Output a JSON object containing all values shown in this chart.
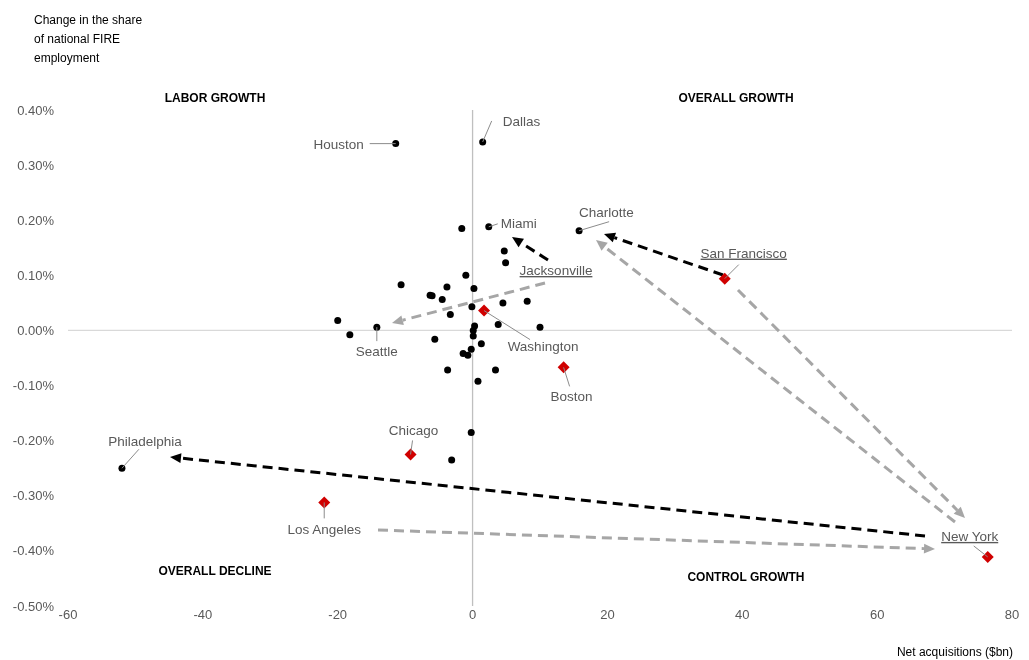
{
  "chart_data": {
    "type": "scatter",
    "xlabel": "Net acquisitions ($bn)",
    "ylabel": "Change in the share of national FIRE employment",
    "xlim": [
      -60,
      80
    ],
    "xticks": [
      -60,
      -40,
      -20,
      0,
      20,
      40,
      60,
      80
    ],
    "ylim": [
      -0.5,
      0.4
    ],
    "yticks": [
      {
        "value": -0.5,
        "label": "-0.50%"
      },
      {
        "value": -0.4,
        "label": "-0.40%"
      },
      {
        "value": -0.3,
        "label": "-0.30%"
      },
      {
        "value": -0.2,
        "label": "-0.20%"
      },
      {
        "value": -0.1,
        "label": "-0.10%"
      },
      {
        "value": 0,
        "label": "0.00%"
      },
      {
        "value": 0.1,
        "label": "0.10%"
      },
      {
        "value": 0.2,
        "label": "0.20%"
      },
      {
        "value": 0.3,
        "label": "0.30%"
      },
      {
        "value": 0.4,
        "label": "0.40%"
      }
    ],
    "grid": false,
    "ref_lines": [
      {
        "axis": "y",
        "value": 0,
        "color": "#d9d9d9"
      },
      {
        "axis": "x",
        "value": 0,
        "color": "#bfbfbf"
      }
    ],
    "series": [
      {
        "color": "#000000",
        "marker": "circle",
        "x": [
          -11.4,
          1.5,
          -1.6,
          2.4,
          4.7,
          4.9,
          -1.0,
          -10.6,
          -3.8,
          0.2,
          -6.3,
          -6.0,
          -4.5,
          4.5,
          8.1,
          -0.1,
          -3.3,
          3.8,
          -20.0,
          -14.2,
          10.0,
          -18.2,
          0.3,
          0.1,
          0.1,
          -5.6,
          1.3,
          -0.2,
          -1.4,
          -0.7,
          -3.7,
          3.4,
          0.8,
          -0.2,
          -3.1,
          -52.0,
          15.8
        ],
        "values": [
          0.339,
          0.342,
          0.185,
          0.188,
          0.144,
          0.123,
          0.1,
          0.083,
          0.079,
          0.076,
          0.064,
          0.063,
          0.056,
          0.05,
          0.053,
          0.043,
          0.029,
          0.011,
          0.018,
          0.006,
          0.006,
          -0.008,
          0.008,
          0.0,
          -0.01,
          -0.016,
          -0.024,
          -0.034,
          -0.042,
          -0.045,
          -0.072,
          -0.072,
          -0.092,
          -0.185,
          -0.235,
          -0.25,
          0.181
        ]
      },
      {
        "color": "#d00000",
        "marker": "diamond",
        "x": [
          1.7,
          13.5,
          -9.2,
          -22.0,
          37.4,
          76.4
        ],
        "values": [
          0.036,
          -0.067,
          -0.225,
          -0.312,
          0.094,
          -0.411
        ]
      }
    ],
    "annotations": [
      {
        "text": "Houston",
        "x": -11.4,
        "y": 0.339
      },
      {
        "text": "Dallas",
        "x": 1.5,
        "y": 0.342
      },
      {
        "text": "Miami",
        "x": 2.4,
        "y": 0.188
      },
      {
        "text": "Charlotte",
        "x": 15.8,
        "y": 0.181
      },
      {
        "text": "San Francisco",
        "x": 37.4,
        "y": 0.094
      },
      {
        "text": "Seattle",
        "x": -14.2,
        "y": 0.006
      },
      {
        "text": "Washington",
        "x": 1.7,
        "y": 0.036
      },
      {
        "text": "Boston",
        "x": 13.5,
        "y": -0.067
      },
      {
        "text": "Chicago",
        "x": -9.2,
        "y": -0.225
      },
      {
        "text": "Philadelphia",
        "x": -52.0,
        "y": -0.25
      },
      {
        "text": "Los Angeles",
        "x": -22.0,
        "y": -0.312
      },
      {
        "text": "New York",
        "x": 76.4,
        "y": -0.411
      },
      "Jacksonville",
      "LABOR GROWTH",
      "OVERALL GROWTH",
      "OVERALL DECLINE",
      "CONTROL GROWTH"
    ]
  }
}
